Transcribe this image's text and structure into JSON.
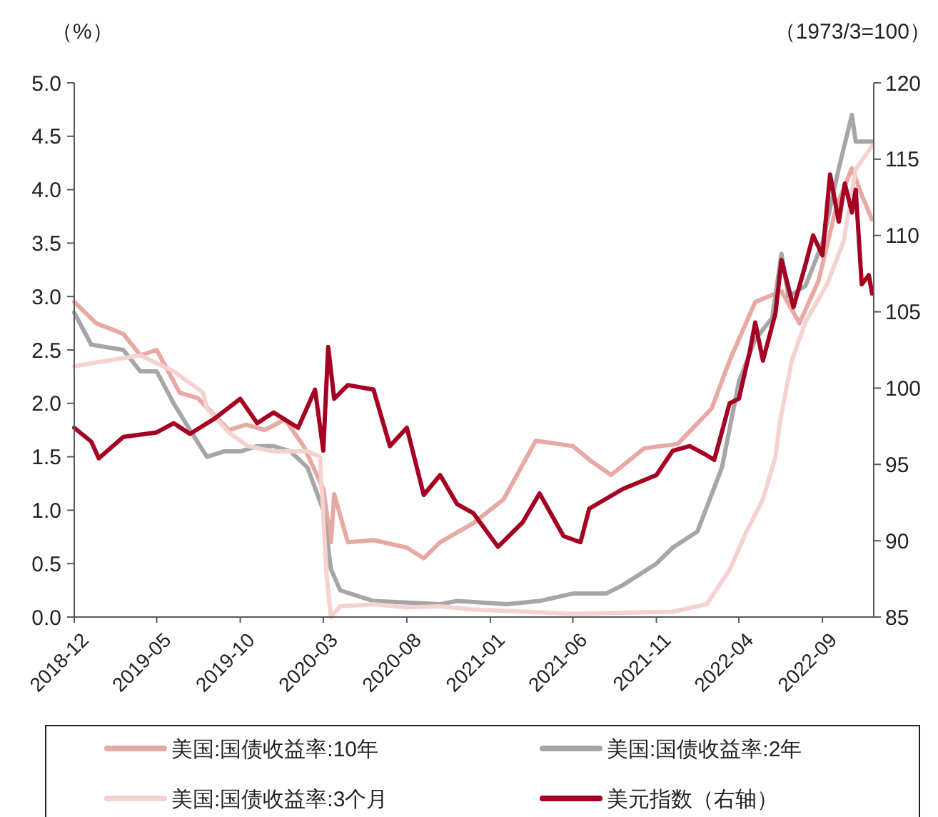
{
  "chart_data": {
    "type": "line",
    "ylabel": "（%）",
    "y2label": "（1973/3=100）",
    "xlim": [
      "2018-12-01",
      "2022-12-04"
    ],
    "xticks": [
      "2018-12",
      "2019-05",
      "2019-10",
      "2020-03",
      "2020-08",
      "2021-01",
      "2021-06",
      "2021-11",
      "2022-04",
      "2022-09"
    ],
    "ylim": [
      0,
      5
    ],
    "yticks": [
      {
        "value": 0,
        "label": "0.0"
      },
      {
        "value": 0.5,
        "label": "0.5"
      },
      {
        "value": 1,
        "label": "1.0"
      },
      {
        "value": 1.5,
        "label": "1.5"
      },
      {
        "value": 2,
        "label": "2.0"
      },
      {
        "value": 2.5,
        "label": "2.5"
      },
      {
        "value": 3,
        "label": "3.0"
      },
      {
        "value": 3.5,
        "label": "3.5"
      },
      {
        "value": 4,
        "label": "4.0"
      },
      {
        "value": 4.5,
        "label": "4.5"
      },
      {
        "value": 5,
        "label": "5.0"
      }
    ],
    "y2lim": [
      85,
      120
    ],
    "y2ticks": [
      85,
      90,
      95,
      100,
      105,
      110,
      115,
      120
    ],
    "grid": false,
    "legend": "bottom",
    "line_style": "solid",
    "marker": "none",
    "series": [
      {
        "name": "美国:国债收益率:10年",
        "color": "#e8a8a3",
        "x": [
          "2018-12-01",
          "2019-01-10",
          "2019-03-01",
          "2019-04-01",
          "2019-05-01",
          "2019-06-12",
          "2019-07-15",
          "2019-09-10",
          "2019-10-12",
          "2019-11-15",
          "2019-12-22",
          "2020-01-25",
          "2020-03-01",
          "2020-03-15",
          "2020-03-21",
          "2020-04-15",
          "2020-06-01",
          "2020-08-01",
          "2020-09-01",
          "2020-10-01",
          "2020-12-01",
          "2021-01-25",
          "2021-03-25",
          "2021-06-01",
          "2021-07-07",
          "2021-08-10",
          "2021-10-10",
          "2021-12-10",
          "2022-02-10",
          "2022-03-15",
          "2022-05-01",
          "2022-06-18",
          "2022-07-21",
          "2022-08-25",
          "2022-09-27",
          "2022-10-25",
          "2022-11-12",
          "2022-12-01"
        ],
        "values": [
          2.95,
          2.75,
          2.65,
          2.45,
          2.5,
          2.1,
          2.05,
          1.75,
          1.8,
          1.75,
          1.85,
          1.6,
          1.2,
          0.7,
          1.15,
          0.7,
          0.72,
          0.65,
          0.55,
          0.7,
          0.88,
          1.1,
          1.65,
          1.6,
          1.45,
          1.33,
          1.58,
          1.62,
          1.95,
          2.4,
          2.95,
          3.05,
          2.75,
          3.15,
          3.85,
          4.2,
          3.95,
          3.72
        ]
      },
      {
        "name": "美国:国债收益率:2年",
        "color": "#a6a6a6",
        "x": [
          "2018-12-01",
          "2019-01-01",
          "2019-03-01",
          "2019-04-01",
          "2019-05-01",
          "2019-06-01",
          "2019-07-01",
          "2019-08-01",
          "2019-09-01",
          "2019-10-01",
          "2019-11-01",
          "2019-12-01",
          "2020-01-01",
          "2020-02-01",
          "2020-03-01",
          "2020-03-15",
          "2020-04-01",
          "2020-06-01",
          "2020-10-01",
          "2020-11-01",
          "2021-02-01",
          "2021-04-01",
          "2021-06-01",
          "2021-08-01",
          "2021-09-01",
          "2021-11-01",
          "2021-12-01",
          "2022-01-15",
          "2022-03-01",
          "2022-04-01",
          "2022-05-01",
          "2022-06-01",
          "2022-06-18",
          "2022-07-01",
          "2022-08-01",
          "2022-09-01",
          "2022-10-01",
          "2022-10-25",
          "2022-11-01",
          "2022-12-01"
        ],
        "values": [
          2.85,
          2.55,
          2.5,
          2.3,
          2.3,
          2.0,
          1.75,
          1.5,
          1.55,
          1.55,
          1.6,
          1.6,
          1.55,
          1.4,
          1.0,
          0.45,
          0.25,
          0.15,
          0.12,
          0.15,
          0.12,
          0.15,
          0.22,
          0.22,
          0.3,
          0.5,
          0.65,
          0.8,
          1.4,
          2.2,
          2.6,
          2.8,
          3.4,
          3.0,
          3.1,
          3.5,
          4.2,
          4.7,
          4.45,
          4.45
        ]
      },
      {
        "name": "美国:国债收益率:3个月",
        "color": "#f5d2cf",
        "x": [
          "2018-12-01",
          "2019-02-01",
          "2019-04-01",
          "2019-06-01",
          "2019-07-25",
          "2019-08-01",
          "2019-09-12",
          "2019-10-15",
          "2019-12-01",
          "2020-02-01",
          "2020-02-24",
          "2020-03-07",
          "2020-03-15",
          "2020-04-01",
          "2020-06-01",
          "2020-08-01",
          "2020-10-01",
          "2020-12-01",
          "2021-06-01",
          "2021-12-01",
          "2022-02-01",
          "2022-03-15",
          "2022-04-15",
          "2022-05-15",
          "2022-06-07",
          "2022-06-15",
          "2022-07-07",
          "2022-08-01",
          "2022-09-10",
          "2022-10-10",
          "2022-11-01",
          "2022-12-01"
        ],
        "values": [
          2.35,
          2.4,
          2.45,
          2.3,
          2.1,
          1.95,
          1.72,
          1.6,
          1.55,
          1.55,
          1.5,
          0.4,
          0.0,
          0.1,
          0.12,
          0.09,
          0.1,
          0.07,
          0.03,
          0.05,
          0.12,
          0.44,
          0.8,
          1.1,
          1.5,
          1.82,
          2.4,
          2.76,
          3.12,
          3.52,
          4.19,
          4.41
        ]
      },
      {
        "name": "美元指数（右轴）",
        "color": "#a50021",
        "axis": "y2",
        "x": [
          "2018-12-01",
          "2019-01-01",
          "2019-01-15",
          "2019-03-01",
          "2019-05-01",
          "2019-06-01",
          "2019-07-01",
          "2019-08-15",
          "2019-10-01",
          "2019-11-01",
          "2019-12-01",
          "2020-01-15",
          "2020-02-15",
          "2020-03-01",
          "2020-03-10",
          "2020-03-21",
          "2020-04-15",
          "2020-06-01",
          "2020-07-01",
          "2020-08-01",
          "2020-09-01",
          "2020-10-01",
          "2020-11-01",
          "2020-12-01",
          "2021-01-15",
          "2021-03-01",
          "2021-04-01",
          "2021-05-15",
          "2021-06-15",
          "2021-07-01",
          "2021-09-01",
          "2021-11-01",
          "2021-12-01",
          "2022-01-01",
          "2022-02-01",
          "2022-02-15",
          "2022-03-15",
          "2022-04-01",
          "2022-04-21",
          "2022-05-01",
          "2022-05-15",
          "2022-06-07",
          "2022-06-18",
          "2022-07-10",
          "2022-08-01",
          "2022-08-15",
          "2022-09-01",
          "2022-09-15",
          "2022-10-01",
          "2022-10-12",
          "2022-10-25",
          "2022-11-01",
          "2022-11-12",
          "2022-11-25",
          "2022-12-01"
        ],
        "values": [
          97.4,
          96.5,
          95.4,
          96.8,
          97.1,
          97.7,
          97.0,
          98.0,
          99.3,
          97.7,
          98.4,
          97.4,
          99.9,
          95.9,
          102.7,
          99.3,
          100.2,
          99.9,
          96.2,
          97.4,
          93.0,
          94.3,
          92.4,
          91.8,
          89.6,
          91.2,
          93.1,
          90.3,
          89.9,
          92.1,
          93.4,
          94.3,
          95.9,
          96.2,
          95.6,
          95.3,
          99.0,
          99.3,
          102.4,
          104.3,
          101.8,
          104.9,
          108.4,
          105.3,
          108.1,
          110.0,
          108.7,
          114.0,
          110.9,
          113.4,
          111.5,
          113.0,
          106.8,
          107.4,
          106.2
        ]
      }
    ]
  }
}
